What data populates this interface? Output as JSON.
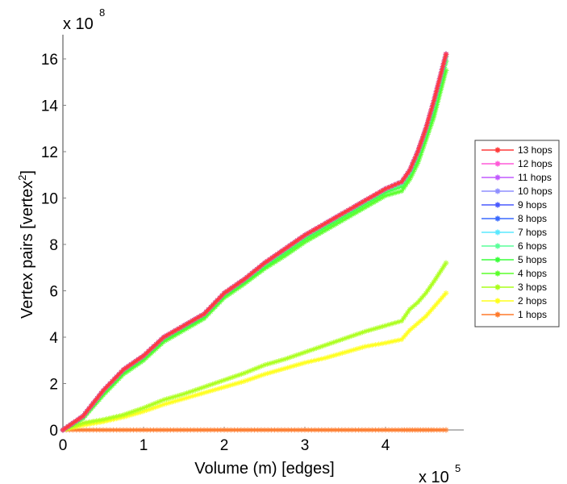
{
  "chart_data": {
    "type": "line",
    "title": "",
    "xlabel": "Volume (m) [edges]",
    "ylabel_main": "Vertex pairs [vertex",
    "ylabel_sup": "2",
    "ylabel_close": "]",
    "x_multiplier": "x 10",
    "x_multiplier_exp": "5",
    "y_multiplier": "x 10",
    "y_multiplier_exp": "8",
    "xlim": [
      0,
      5
    ],
    "ylim": [
      0,
      17
    ],
    "xticks": [
      0,
      1,
      2,
      3,
      4
    ],
    "xtick_labels": [
      "0",
      "1",
      "2",
      "3",
      "4"
    ],
    "yticks": [
      0,
      2,
      4,
      6,
      8,
      10,
      12,
      14,
      16
    ],
    "ytick_labels": [
      "0",
      "2",
      "4",
      "6",
      "8",
      "10",
      "12",
      "14",
      "16"
    ],
    "grid": false,
    "legend_position": "outside-right",
    "x": [
      0,
      0.25,
      0.5,
      0.75,
      1.0,
      1.25,
      1.5,
      1.75,
      2.0,
      2.25,
      2.5,
      2.75,
      3.0,
      3.25,
      3.5,
      3.75,
      4.0,
      4.2,
      4.3,
      4.4,
      4.5,
      4.6,
      4.75
    ],
    "series": [
      {
        "name": "13 hops",
        "color": "#ff3a3a",
        "values": [
          0,
          0.6,
          1.7,
          2.6,
          3.2,
          4.0,
          4.5,
          5.0,
          5.9,
          6.5,
          7.2,
          7.8,
          8.4,
          8.9,
          9.4,
          9.9,
          10.4,
          10.7,
          11.2,
          12.0,
          13.0,
          14.2,
          16.2
        ]
      },
      {
        "name": "12 hops",
        "color": "#ff5ad8",
        "values": [
          0,
          0.6,
          1.7,
          2.6,
          3.2,
          4.0,
          4.5,
          5.0,
          5.9,
          6.5,
          7.2,
          7.8,
          8.4,
          8.9,
          9.4,
          9.9,
          10.4,
          10.7,
          11.2,
          12.0,
          13.0,
          14.2,
          16.2
        ]
      },
      {
        "name": "11 hops",
        "color": "#c25aff",
        "values": [
          0,
          0.6,
          1.7,
          2.6,
          3.2,
          4.0,
          4.5,
          5.0,
          5.9,
          6.5,
          7.2,
          7.8,
          8.4,
          8.9,
          9.4,
          9.9,
          10.4,
          10.7,
          11.2,
          12.0,
          13.0,
          14.2,
          16.2
        ]
      },
      {
        "name": "10 hops",
        "color": "#8f8fff",
        "values": [
          0,
          0.6,
          1.7,
          2.6,
          3.2,
          4.0,
          4.5,
          5.0,
          5.9,
          6.5,
          7.2,
          7.8,
          8.4,
          8.9,
          9.4,
          9.9,
          10.4,
          10.7,
          11.2,
          12.0,
          13.0,
          14.2,
          16.2
        ]
      },
      {
        "name": "9 hops",
        "color": "#4a5aff",
        "values": [
          0,
          0.6,
          1.7,
          2.6,
          3.2,
          4.0,
          4.5,
          5.0,
          5.9,
          6.5,
          7.2,
          7.8,
          8.4,
          8.9,
          9.4,
          9.9,
          10.4,
          10.7,
          11.2,
          12.0,
          13.0,
          14.2,
          16.2
        ]
      },
      {
        "name": "8 hops",
        "color": "#3a6aff",
        "values": [
          0,
          0.6,
          1.7,
          2.6,
          3.2,
          4.0,
          4.5,
          5.0,
          5.9,
          6.5,
          7.2,
          7.8,
          8.4,
          8.9,
          9.4,
          9.9,
          10.4,
          10.7,
          11.2,
          12.0,
          13.0,
          14.2,
          16.2
        ]
      },
      {
        "name": "7 hops",
        "color": "#5ae8ff",
        "values": [
          0,
          0.6,
          1.7,
          2.6,
          3.2,
          4.0,
          4.5,
          5.0,
          5.9,
          6.5,
          7.2,
          7.8,
          8.4,
          8.9,
          9.4,
          9.9,
          10.4,
          10.7,
          11.2,
          12.0,
          13.0,
          14.2,
          16.2
        ]
      },
      {
        "name": "6 hops",
        "color": "#5aff9a",
        "values": [
          0,
          0.58,
          1.68,
          2.58,
          3.18,
          3.98,
          4.48,
          4.98,
          5.88,
          6.48,
          7.15,
          7.75,
          8.35,
          8.85,
          9.35,
          9.85,
          10.35,
          10.6,
          11.1,
          11.9,
          12.9,
          14.0,
          16.1
        ]
      },
      {
        "name": "5 hops",
        "color": "#3aff3a",
        "values": [
          0,
          0.55,
          1.6,
          2.5,
          3.1,
          3.9,
          4.4,
          4.9,
          5.8,
          6.4,
          7.05,
          7.65,
          8.25,
          8.75,
          9.25,
          9.75,
          10.25,
          10.5,
          11.0,
          11.7,
          12.7,
          13.8,
          15.9
        ]
      },
      {
        "name": "4 hops",
        "color": "#5aff2a",
        "values": [
          0,
          0.5,
          1.5,
          2.4,
          3.0,
          3.8,
          4.3,
          4.8,
          5.7,
          6.3,
          6.95,
          7.5,
          8.1,
          8.6,
          9.1,
          9.6,
          10.1,
          10.3,
          10.8,
          11.5,
          12.5,
          13.5,
          15.5
        ]
      },
      {
        "name": "3 hops",
        "color": "#aaff1a",
        "values": [
          0,
          0.3,
          0.45,
          0.65,
          0.95,
          1.3,
          1.55,
          1.85,
          2.15,
          2.45,
          2.8,
          3.05,
          3.35,
          3.65,
          3.95,
          4.25,
          4.5,
          4.7,
          5.2,
          5.5,
          5.9,
          6.4,
          7.2
        ]
      },
      {
        "name": "2 hops",
        "color": "#ffff1a",
        "values": [
          0,
          0.2,
          0.35,
          0.55,
          0.8,
          1.1,
          1.35,
          1.6,
          1.85,
          2.1,
          2.4,
          2.65,
          2.9,
          3.1,
          3.35,
          3.6,
          3.75,
          3.9,
          4.3,
          4.6,
          4.9,
          5.3,
          5.9
        ]
      },
      {
        "name": "1 hops",
        "color": "#ff7a2a",
        "values": [
          0,
          0,
          0,
          0,
          0,
          0,
          0,
          0,
          0,
          0,
          0,
          0,
          0,
          0,
          0,
          0,
          0,
          0,
          0,
          0,
          0,
          0,
          0
        ]
      }
    ]
  }
}
